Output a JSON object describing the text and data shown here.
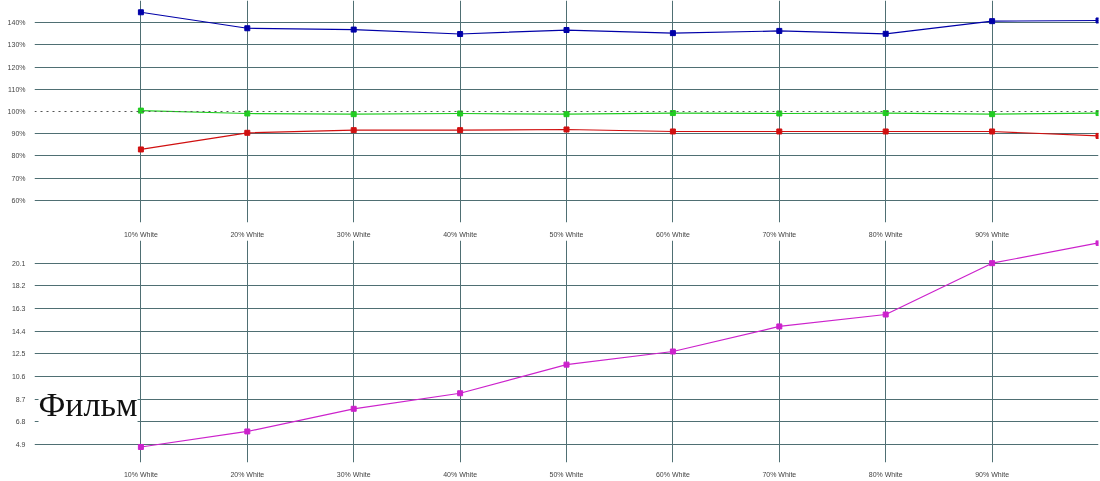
{
  "chart_data": [
    {
      "type": "line",
      "categories": [
        "10% White",
        "20% White",
        "30% White",
        "40% White",
        "50% White",
        "60% White",
        "70% White",
        "80% White",
        "90% White",
        null
      ],
      "series": [
        {
          "color": "#0000a8",
          "values": [
            144.7,
            137.5,
            136.9,
            134.9,
            136.7,
            135.3,
            136.3,
            135.0,
            140.7,
            141.0
          ]
        },
        {
          "color": "#22cc22",
          "values": [
            100.4,
            99.1,
            98.8,
            99.1,
            98.8,
            99.3,
            99.1,
            99.3,
            98.8,
            99.3
          ]
        },
        {
          "color": "#d01010",
          "values": [
            82.9,
            90.4,
            91.6,
            91.6,
            91.9,
            91.0,
            91.0,
            91.0,
            91.0,
            89.0
          ]
        }
      ],
      "ylim": [
        50,
        150
      ],
      "yticks": [
        {
          "value": 60,
          "label": "60%"
        },
        {
          "value": 70,
          "label": "70%"
        },
        {
          "value": 80,
          "label": "80%"
        },
        {
          "value": 90,
          "label": "90%"
        },
        {
          "value": 100,
          "label": "100%"
        },
        {
          "value": 110,
          "label": "110%"
        },
        {
          "value": 120,
          "label": "120%"
        },
        {
          "value": 130,
          "label": "130%"
        },
        {
          "value": 140,
          "label": "140%"
        }
      ],
      "ref_lines": [
        {
          "axis": "y",
          "value": 100,
          "label": null,
          "color": "#555555",
          "line_style": "dotted"
        }
      ],
      "grid": true,
      "marker": "square",
      "line_style": "solid"
    },
    {
      "type": "line",
      "categories": [
        "10% White",
        "20% White",
        "30% White",
        "40% White",
        "50% White",
        "60% White",
        "70% White",
        "80% White",
        "90% White",
        null
      ],
      "series": [
        {
          "color": "#cc22cc",
          "values": [
            4.7,
            6.0,
            7.9,
            9.2,
            11.6,
            12.7,
            14.8,
            15.8,
            20.1,
            21.8
          ]
        }
      ],
      "ylim": [
        3.4,
        22.0
      ],
      "yticks": [
        4.9,
        6.8,
        8.7,
        10.6,
        12.5,
        14.4,
        16.3,
        18.2,
        20.1
      ],
      "annotations": [
        "Фильм"
      ],
      "grid": true,
      "marker": "square",
      "line_style": "solid"
    }
  ]
}
